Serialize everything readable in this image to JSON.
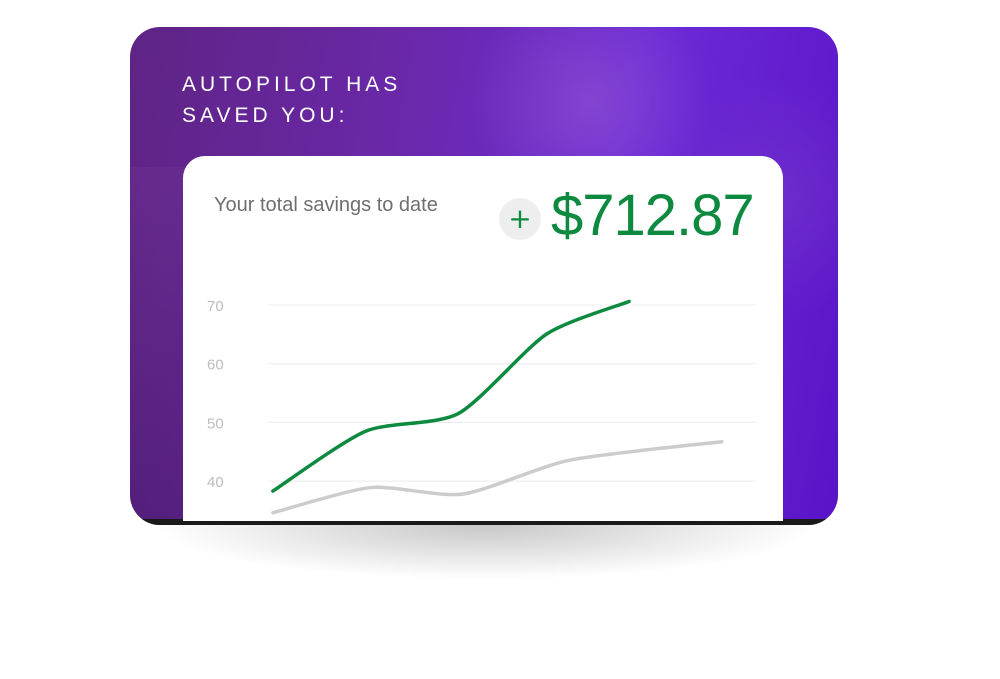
{
  "header": {
    "title_line1": "AUTOPILOT HAS",
    "title_line2": "SAVED YOU:"
  },
  "summary": {
    "label": "Your total savings to date",
    "sign": "+",
    "amount": "$712.87"
  },
  "colors": {
    "accent_green": "#0d8a3f",
    "comparison_grey": "#cccccc",
    "hero_purple": "#6a28c8"
  },
  "chart_data": {
    "type": "line",
    "title": "",
    "xlabel": "",
    "ylabel": "",
    "ylim": [
      35,
      71
    ],
    "xlim": [
      0,
      10
    ],
    "yticks": [
      "70",
      "60",
      "50",
      "40"
    ],
    "grid": true,
    "series": [
      {
        "color": "#0d8a3f",
        "x": [
          0.1,
          2.0,
          3.9,
          5.7,
          7.4
        ],
        "y": [
          38.3,
          48.5,
          51.5,
          65.0,
          70.6
        ]
      },
      {
        "color": "#cccccc",
        "x": [
          0.1,
          2.1,
          4.0,
          6.2,
          9.3
        ],
        "y": [
          34.6,
          38.9,
          37.8,
          43.6,
          46.7
        ]
      }
    ]
  }
}
